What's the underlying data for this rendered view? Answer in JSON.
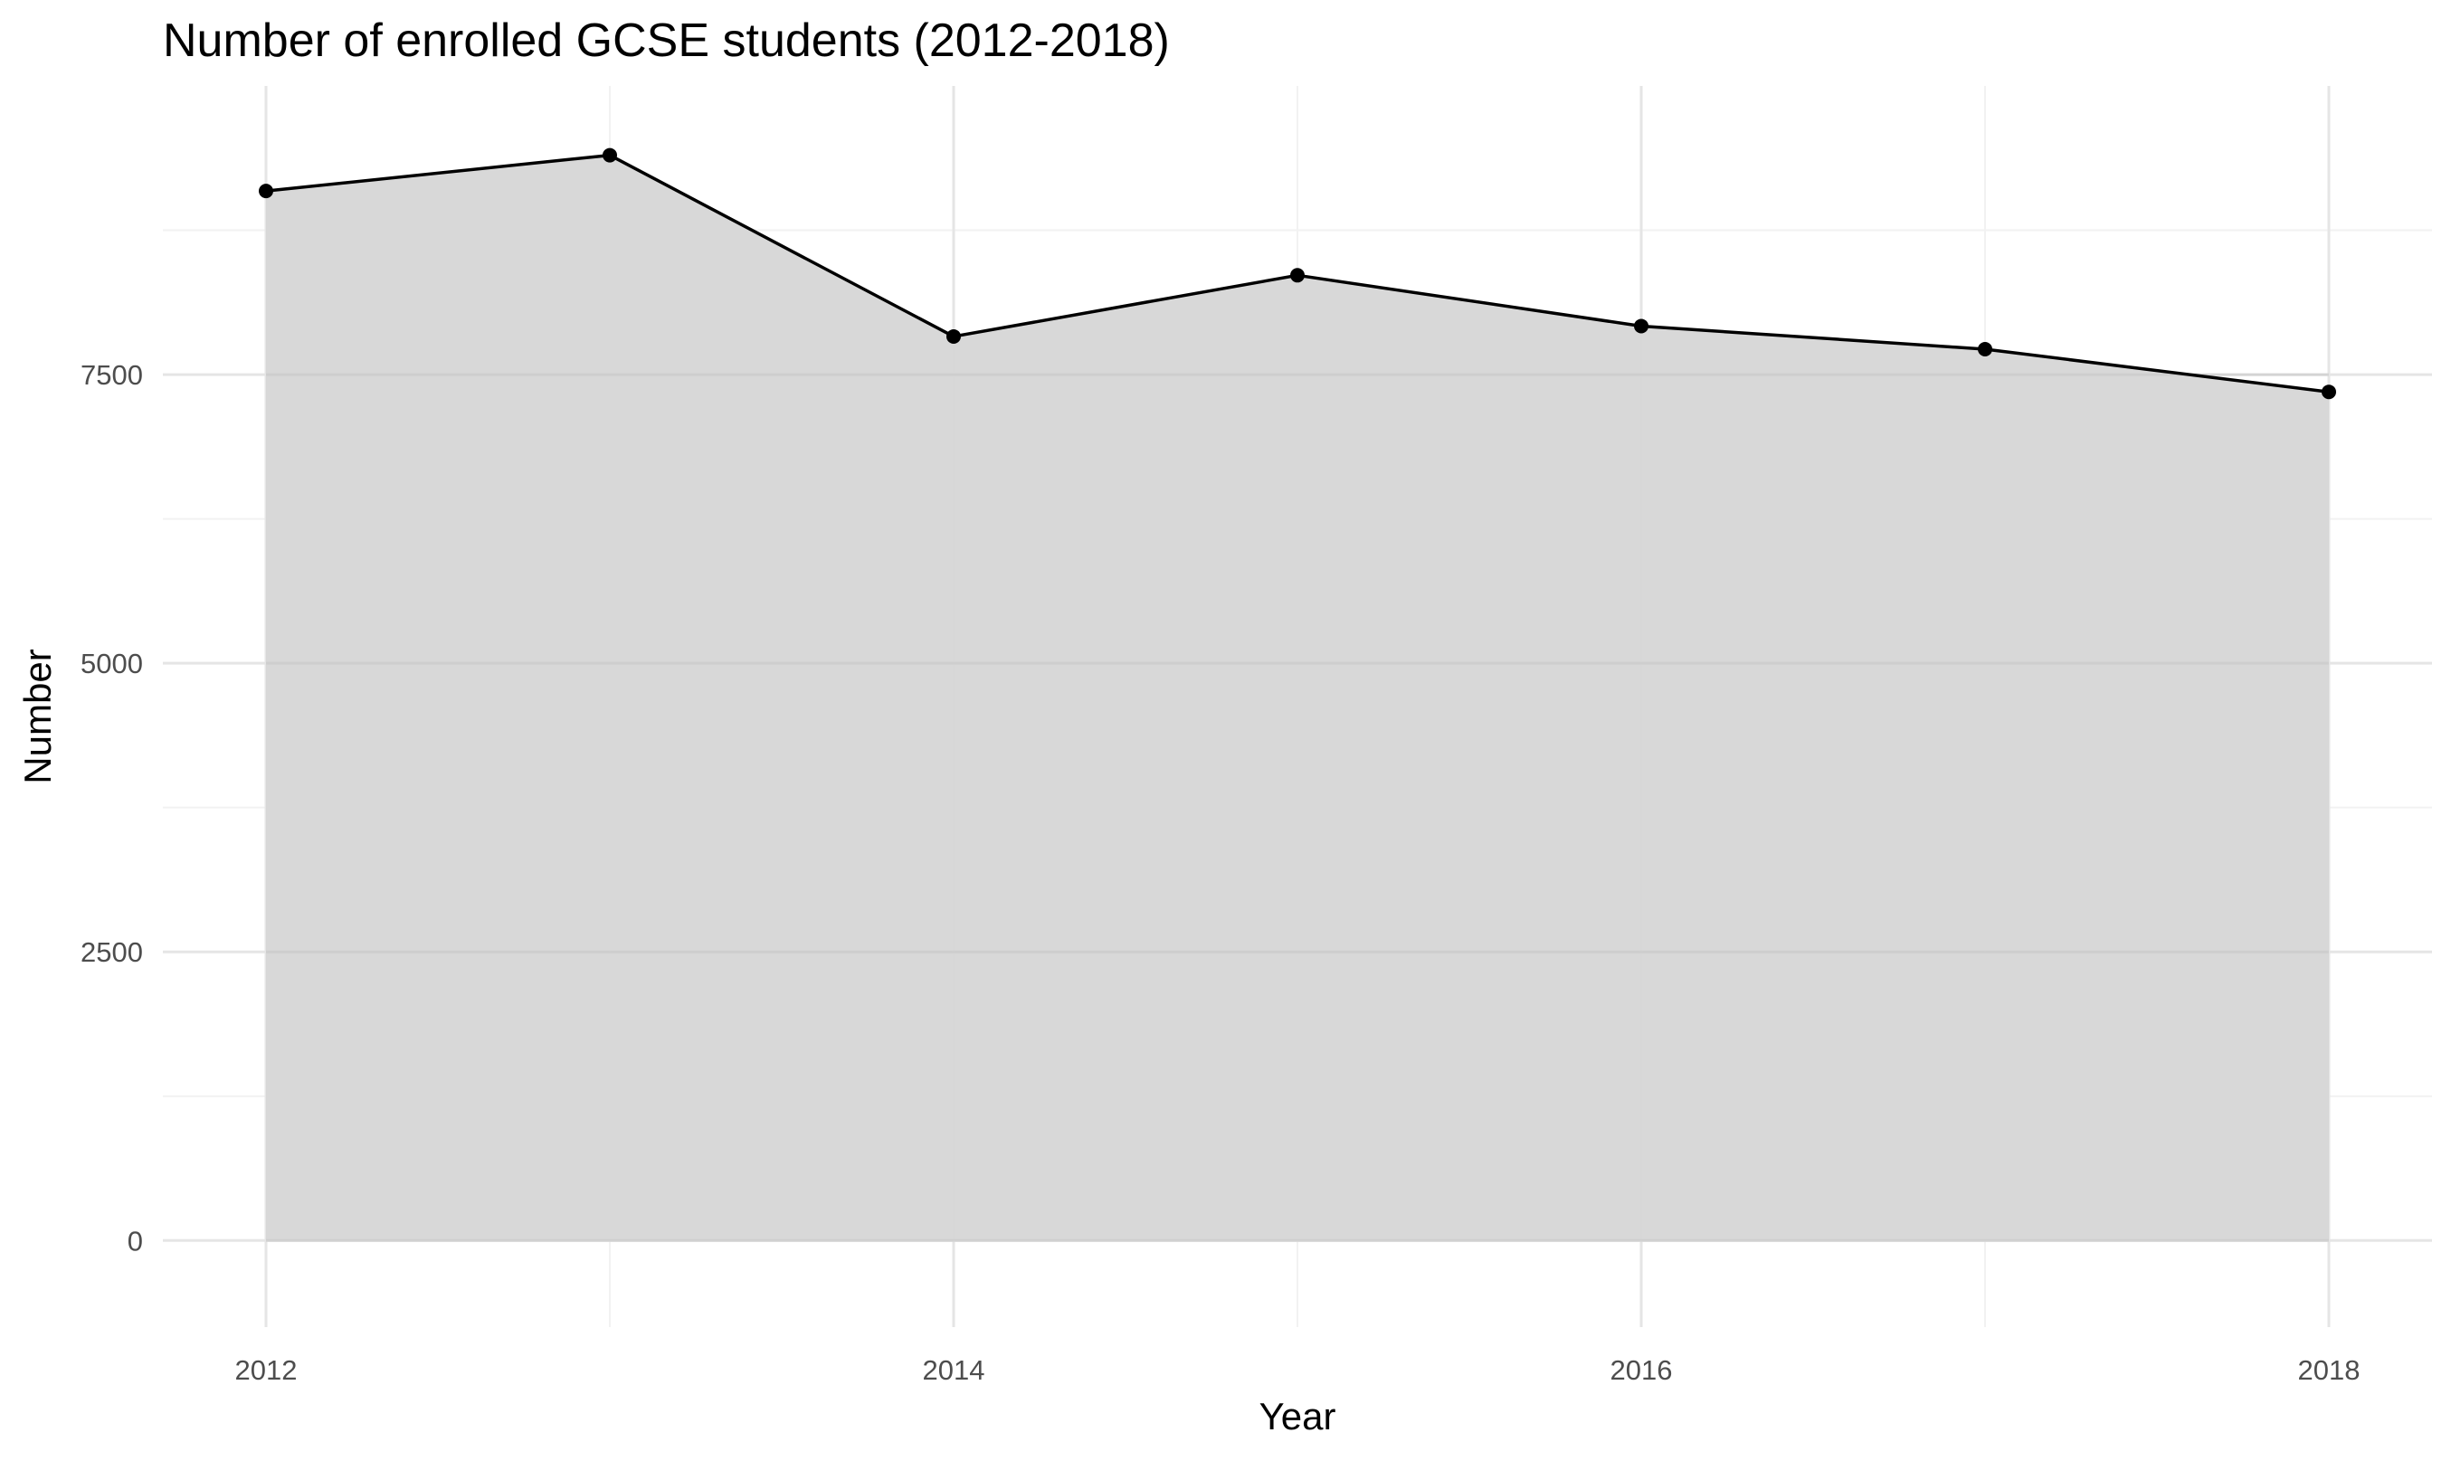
{
  "chart_data": {
    "type": "area",
    "title": "Number of enrolled GCSE students (2012-2018)",
    "xlabel": "Year",
    "ylabel": "Number",
    "x": [
      2012,
      2013,
      2014,
      2015,
      2016,
      2017,
      2018
    ],
    "values": [
      9090,
      9400,
      7830,
      8360,
      7920,
      7720,
      7350
    ],
    "xlim": [
      2011.7,
      2018.3
    ],
    "ylim": [
      -750,
      10000
    ],
    "x_ticks": [
      2012,
      2014,
      2016,
      2018
    ],
    "x_tick_labels": [
      "2012",
      "2014",
      "2016",
      "2018"
    ],
    "x_minor_ticks": [
      2013,
      2015,
      2017
    ],
    "y_ticks": [
      0,
      2500,
      5000,
      7500
    ],
    "y_tick_labels": [
      "0",
      "2500",
      "5000",
      "7500"
    ],
    "y_minor_ticks": [
      1250,
      3750,
      6250,
      8750
    ],
    "grid": true,
    "legend": "none",
    "colors": {
      "area_fill": "#d6d6d6",
      "line": "#000000",
      "points": "#000000",
      "grid_major": "#e5e5e5",
      "grid_minor": "#f2f2f2"
    }
  }
}
